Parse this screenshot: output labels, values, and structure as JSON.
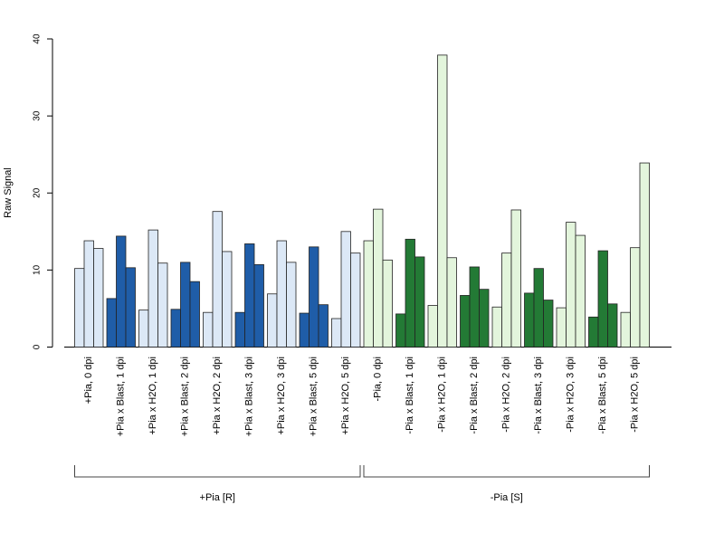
{
  "chart_data": {
    "type": "bar",
    "ylabel": "Raw Signal",
    "ylim": [
      0,
      40
    ],
    "yticks": [
      0,
      10,
      20,
      30,
      40
    ],
    "categories": [
      "+Pia, 0 dpi",
      "+Pia x Blast, 1 dpi",
      "+Pia x H2O, 1 dpi",
      "+Pia x Blast, 2 dpi",
      "+Pia x H2O, 2 dpi",
      "+Pia x Blast, 3 dpi",
      "+Pia x H2O, 3 dpi",
      "+Pia x Blast, 5 dpi",
      "+Pia x H2O, 5 dpi",
      "-Pia, 0 dpi",
      "-Pia x Blast, 1 dpi",
      "-Pia x H2O, 1 dpi",
      "-Pia x Blast, 2 dpi",
      "-Pia x H2O, 2 dpi",
      "-Pia x Blast, 3 dpi",
      "-Pia x H2O, 3 dpi",
      "-Pia x Blast, 5 dpi",
      "-Pia x H2O, 5 dpi"
    ],
    "values": [
      [
        10.2,
        13.8,
        12.8
      ],
      [
        6.3,
        14.4,
        10.3
      ],
      [
        4.8,
        15.2,
        10.9
      ],
      [
        4.9,
        11.0,
        8.5
      ],
      [
        4.5,
        17.6,
        12.4
      ],
      [
        4.5,
        13.4,
        10.7
      ],
      [
        6.9,
        13.8,
        11.0
      ],
      [
        4.4,
        13.0,
        5.5
      ],
      [
        3.7,
        15.0,
        12.2
      ],
      [
        13.8,
        17.9,
        11.3
      ],
      [
        4.3,
        14.0,
        11.7
      ],
      [
        5.4,
        37.9,
        11.6
      ],
      [
        6.7,
        10.4,
        7.5
      ],
      [
        5.2,
        12.2,
        17.8
      ],
      [
        7.0,
        10.2,
        6.1
      ],
      [
        5.1,
        16.2,
        14.5
      ],
      [
        3.9,
        12.5,
        5.6
      ],
      [
        4.5,
        12.9,
        23.9
      ]
    ],
    "colors": [
      "#dce8f6",
      "#1f5da8",
      "#dce8f6",
      "#1f5da8",
      "#dce8f6",
      "#1f5da8",
      "#dce8f6",
      "#1f5da8",
      "#dce8f6",
      "#e3f5dc",
      "#237a35",
      "#e3f5dc",
      "#237a35",
      "#e3f5dc",
      "#237a35",
      "#e3f5dc",
      "#237a35",
      "#e3f5dc"
    ],
    "groups": [
      {
        "label": "+Pia [R]",
        "from": 0,
        "to": 8
      },
      {
        "label": "-Pia [S]",
        "from": 9,
        "to": 17
      }
    ]
  }
}
